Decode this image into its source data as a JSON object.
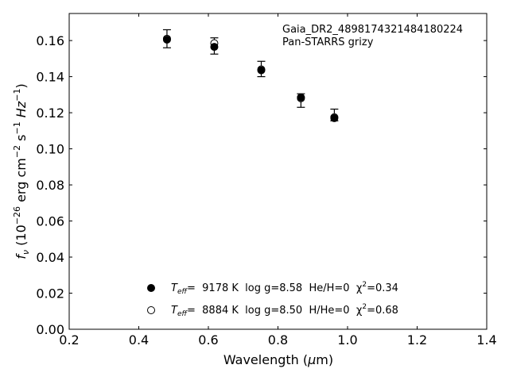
{
  "chart_data": {
    "type": "scatter",
    "xlabel_text": "Wavelength (",
    "xlabel_unit_greek": "μ",
    "xlabel_unit_rest": "m)",
    "ylabel_symbol": "f",
    "ylabel_sub": "ν",
    "ylabel_open": " (10",
    "ylabel_exp": "−26",
    "ylabel_units_a": " erg cm",
    "ylabel_exp2": "−2",
    "ylabel_units_b": " s",
    "ylabel_exp3": "−1",
    "ylabel_units_c": " Hz",
    "ylabel_exp4": "−1",
    "ylabel_close": ")",
    "xlim": [
      0.2,
      1.4
    ],
    "ylim": [
      0.0,
      0.175
    ],
    "xticks": [
      0.2,
      0.4,
      0.6,
      0.8,
      1.0,
      1.2,
      1.4
    ],
    "xtick_labels": [
      "0.2",
      "0.4",
      "0.6",
      "0.8",
      "1.0",
      "1.2",
      "1.4"
    ],
    "yticks": [
      0.0,
      0.02,
      0.04,
      0.06,
      0.08,
      0.1,
      0.12,
      0.14,
      0.16
    ],
    "ytick_labels": [
      "0.00",
      "0.02",
      "0.04",
      "0.06",
      "0.08",
      "0.10",
      "0.12",
      "0.14",
      "0.16"
    ],
    "annotation": [
      "Gaia_DR2_4898174321484180224",
      "Pan-STARRS grizy"
    ],
    "observed": {
      "x": [
        0.481,
        0.617,
        0.752,
        0.866,
        0.962
      ],
      "y": [
        0.161,
        0.157,
        0.144,
        0.127,
        0.1185
      ],
      "yerr_low": [
        0.005,
        0.0045,
        0.004,
        0.004,
        0.003
      ],
      "yerr_high": [
        0.005,
        0.0045,
        0.0045,
        0.0035,
        0.0035
      ]
    },
    "series": [
      {
        "marker": "filled-circle",
        "x": [
          0.481,
          0.617,
          0.752,
          0.866,
          0.962
        ],
        "y": [
          0.1605,
          0.1565,
          0.1435,
          0.1285,
          0.117
        ],
        "legend": {
          "teff_sym": "T",
          "teff_sub": "eff",
          "label": "=  9178 K  log g=8.58  He/H=0  χ",
          "chi_exp": "2",
          "chi_val": "=0.34"
        }
      },
      {
        "marker": "open-circle",
        "x": [
          0.481,
          0.617,
          0.752,
          0.866,
          0.962
        ],
        "y": [
          0.161,
          0.1585,
          0.144,
          0.128,
          0.1175
        ],
        "legend": {
          "teff_sym": "T",
          "teff_sub": "eff",
          "label": "=  8884 K  log g=8.50  H/He=0  χ",
          "chi_exp": "2",
          "chi_val": "=0.68"
        }
      }
    ],
    "grid": false,
    "legend_position": "lower-center"
  }
}
